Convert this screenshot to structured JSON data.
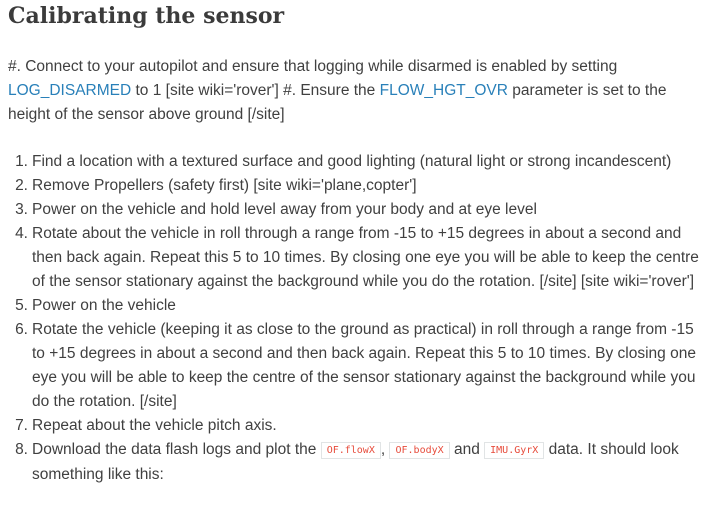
{
  "heading": "Calibrating the sensor",
  "intro": {
    "t1": "#. Connect to your autopilot and ensure that logging while disarmed is enabled by setting ",
    "link1": "LOG_DISARMED",
    "t2": " to 1 [site wiki='rover'] #. Ensure the ",
    "link2": "FLOW_HGT_OVR",
    "t3": " parameter is set to the height of the sensor above ground [/site]"
  },
  "steps": [
    {
      "num": "1.",
      "text": "Find a location with a textured surface and good lighting (natural light or strong incandescent)"
    },
    {
      "num": "2.",
      "text": "Remove Propellers (safety first) [site wiki='plane,copter']"
    },
    {
      "num": "3.",
      "text": "Power on the vehicle and hold level away from your body and at eye level"
    },
    {
      "num": "4.",
      "text": "Rotate about the vehicle in roll through a range from -15 to +15 degrees in about a second and then back again. Repeat this 5 to 10 times. By closing one eye you will be able to keep the centre of the sensor stationary against the background while you do the rotation. [/site] [site wiki='rover']"
    },
    {
      "num": "5.",
      "text": "Power on the vehicle"
    },
    {
      "num": "6.",
      "text": "Rotate the vehicle (keeping it as close to the ground as practical) in roll through a range from -15 to +15 degrees in about a second and then back again. Repeat this 5 to 10 times. By closing one eye you will be able to keep the centre of the sensor stationary against the background while you do the rotation. [/site]"
    },
    {
      "num": "7.",
      "text": "Repeat about the vehicle pitch axis."
    }
  ],
  "step8": {
    "num": "8.",
    "t1": "Download the data flash logs and plot the ",
    "code1": "OF.flowX",
    "sep": ", ",
    "code2": "OF.bodyX",
    "t2": " and ",
    "code3": "IMU.GyrX",
    "t3": " data. It should look something like this:"
  }
}
